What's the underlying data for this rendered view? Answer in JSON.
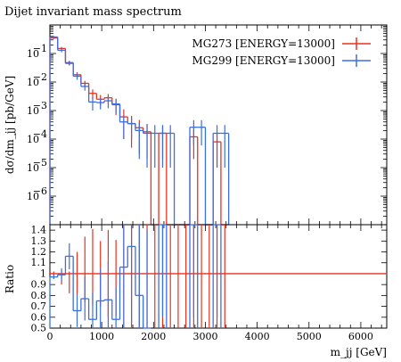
{
  "chart_data": {
    "type": "line",
    "title": "Dijet invariant mass spectrum",
    "xlabel": "m_jj [GeV]",
    "ylabel": "dσ/dm_jj [pb/GeV]",
    "ratio_ylabel": "Ratio",
    "xlim": [
      0,
      6500
    ],
    "ylim": [
      1e-07,
      1
    ],
    "ratio_ylim": [
      0.5,
      1.45
    ],
    "log_y": true,
    "grid": false,
    "legend_position": "top-right",
    "colors": {
      "red": "#e8321e",
      "blue": "#3c6ee0"
    },
    "x_ticks": [
      0,
      1000,
      2000,
      3000,
      4000,
      5000,
      6000
    ],
    "x_tick_labels": [
      "0",
      "1000",
      "2000",
      "3000",
      "4000",
      "5000",
      "6000"
    ],
    "y_tick_labels": [
      {
        "exp": -6,
        "label": "10",
        "sup": "−6"
      },
      {
        "exp": -5,
        "label": "10",
        "sup": "−5"
      },
      {
        "exp": -4,
        "label": "10",
        "sup": "−4"
      },
      {
        "exp": -3,
        "label": "10",
        "sup": "−3"
      },
      {
        "exp": -2,
        "label": "10",
        "sup": "−2"
      },
      {
        "exp": -1,
        "label": "10",
        "sup": "−1"
      }
    ],
    "ratio_ticks": [
      0.5,
      0.6,
      0.7,
      0.8,
      0.9,
      1.0,
      1.1,
      1.2,
      1.3,
      1.4
    ],
    "ratio_tick_labels": [
      "0.5",
      "0.6",
      "0.7",
      "0.8",
      "0.9",
      "1",
      "1.1",
      "1.2",
      "1.3",
      "1.4"
    ],
    "bin_edges": [
      0,
      150,
      300,
      450,
      600,
      750,
      900,
      1050,
      1200,
      1350,
      1500,
      1650,
      1800,
      1950,
      2100,
      2250,
      2400,
      2550,
      2700,
      2850,
      3000,
      3150,
      3300,
      3450
    ],
    "series": [
      {
        "name": "MG273 [ENERGY=13000]",
        "color": "#e8321e",
        "values": [
          0.35,
          0.15,
          0.045,
          0.018,
          0.009,
          0.004,
          0.0025,
          0.0028,
          0.0016,
          0.0006,
          0.00035,
          0.00025,
          0.00018,
          0,
          0.00016,
          0,
          0,
          0,
          0.00012,
          0,
          0,
          8e-05,
          0
        ],
        "errors": [
          0.03,
          0.02,
          0.007,
          0.004,
          0.002,
          0.0015,
          0.001,
          0.001,
          0.0009,
          0.0005,
          0.0003,
          0.00022,
          0.00016,
          0,
          0.00014,
          0,
          0,
          0,
          0.0001,
          0,
          0,
          7e-05,
          0
        ]
      },
      {
        "name": "MG299 [ENERGY=13000]",
        "color": "#3c6ee0",
        "values": [
          0.38,
          0.13,
          0.048,
          0.016,
          0.007,
          0.002,
          0.0019,
          0.0022,
          0.0017,
          0.0004,
          0.00035,
          0.0002,
          0.00016,
          0.00016,
          0.00016,
          0.00016,
          0,
          0,
          0.00026,
          0.00026,
          0,
          0.00016,
          0.00016
        ],
        "errors": [
          0.03,
          0.02,
          0.008,
          0.004,
          0.002,
          0.001,
          0.0008,
          0.001,
          0.0009,
          0.0003,
          0.00025,
          0.00018,
          0.00015,
          0.00015,
          0.00015,
          0.00015,
          0,
          0,
          0.0002,
          0.0002,
          0,
          0.00015,
          0.00015
        ]
      }
    ],
    "ratio": {
      "red": [
        1.0,
        0.96,
        0.92,
        1.0,
        1.04,
        1.06,
        1.0,
        1.0,
        0.96,
        1.0,
        1.0,
        1.0,
        1.0,
        1.0,
        1.0,
        1.0,
        1.0,
        1.0,
        1.0,
        1.0,
        1.0,
        1.0,
        1.0
      ],
      "red_err": [
        0.02,
        0.06,
        0.1,
        0.2,
        0.3,
        0.35,
        0.3,
        0.4,
        0.35,
        0.7,
        0.8,
        0.9,
        1.0,
        1.0,
        1.0,
        1.0,
        1.0,
        1.0,
        1.0,
        1.0,
        1.0,
        1.0,
        1.0
      ],
      "blue": [
        0.97,
        0.99,
        1.16,
        0.66,
        0.77,
        0.58,
        0.75,
        0.76,
        0.58,
        1.06,
        1.25,
        0.8,
        0.5,
        null,
        1.5,
        null,
        null,
        null,
        1.5,
        null,
        null,
        1.5,
        null
      ],
      "blue_err": [
        0.02,
        0.06,
        0.12,
        0.15,
        0.2,
        0.25,
        0.3,
        0.35,
        0.3,
        0.6,
        0.7,
        0.8,
        0.9,
        null,
        0.9,
        null,
        null,
        null,
        0.9,
        null,
        null,
        0.9,
        null
      ]
    }
  }
}
